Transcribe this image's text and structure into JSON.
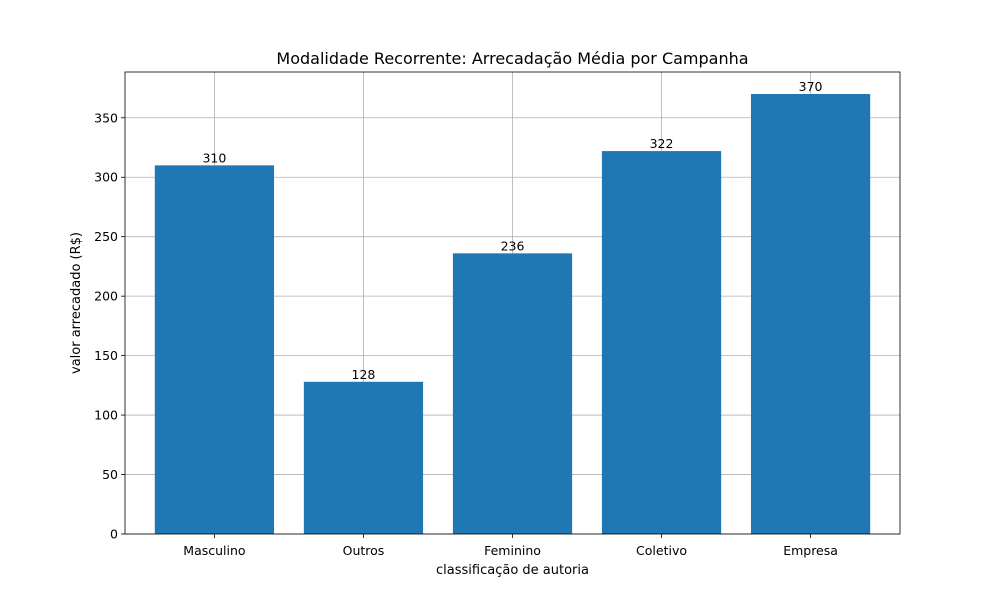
{
  "chart_data": {
    "type": "bar",
    "title": "Modalidade Recorrente: Arrecadação Média por Campanha",
    "xlabel": "classificação de autoria",
    "ylabel": "valor arrecadado (R$)",
    "categories": [
      "Masculino",
      "Outros",
      "Feminino",
      "Coletivo",
      "Empresa"
    ],
    "values": [
      310,
      128,
      236,
      322,
      370
    ],
    "data_labels": [
      "310",
      "128",
      "236",
      "322",
      "370"
    ],
    "ylim": [
      0,
      388.5
    ],
    "yticks": [
      0,
      50,
      100,
      150,
      200,
      250,
      300,
      350
    ],
    "grid": true,
    "legend": "none",
    "colors": {
      "bar": "#1f77b4"
    }
  }
}
